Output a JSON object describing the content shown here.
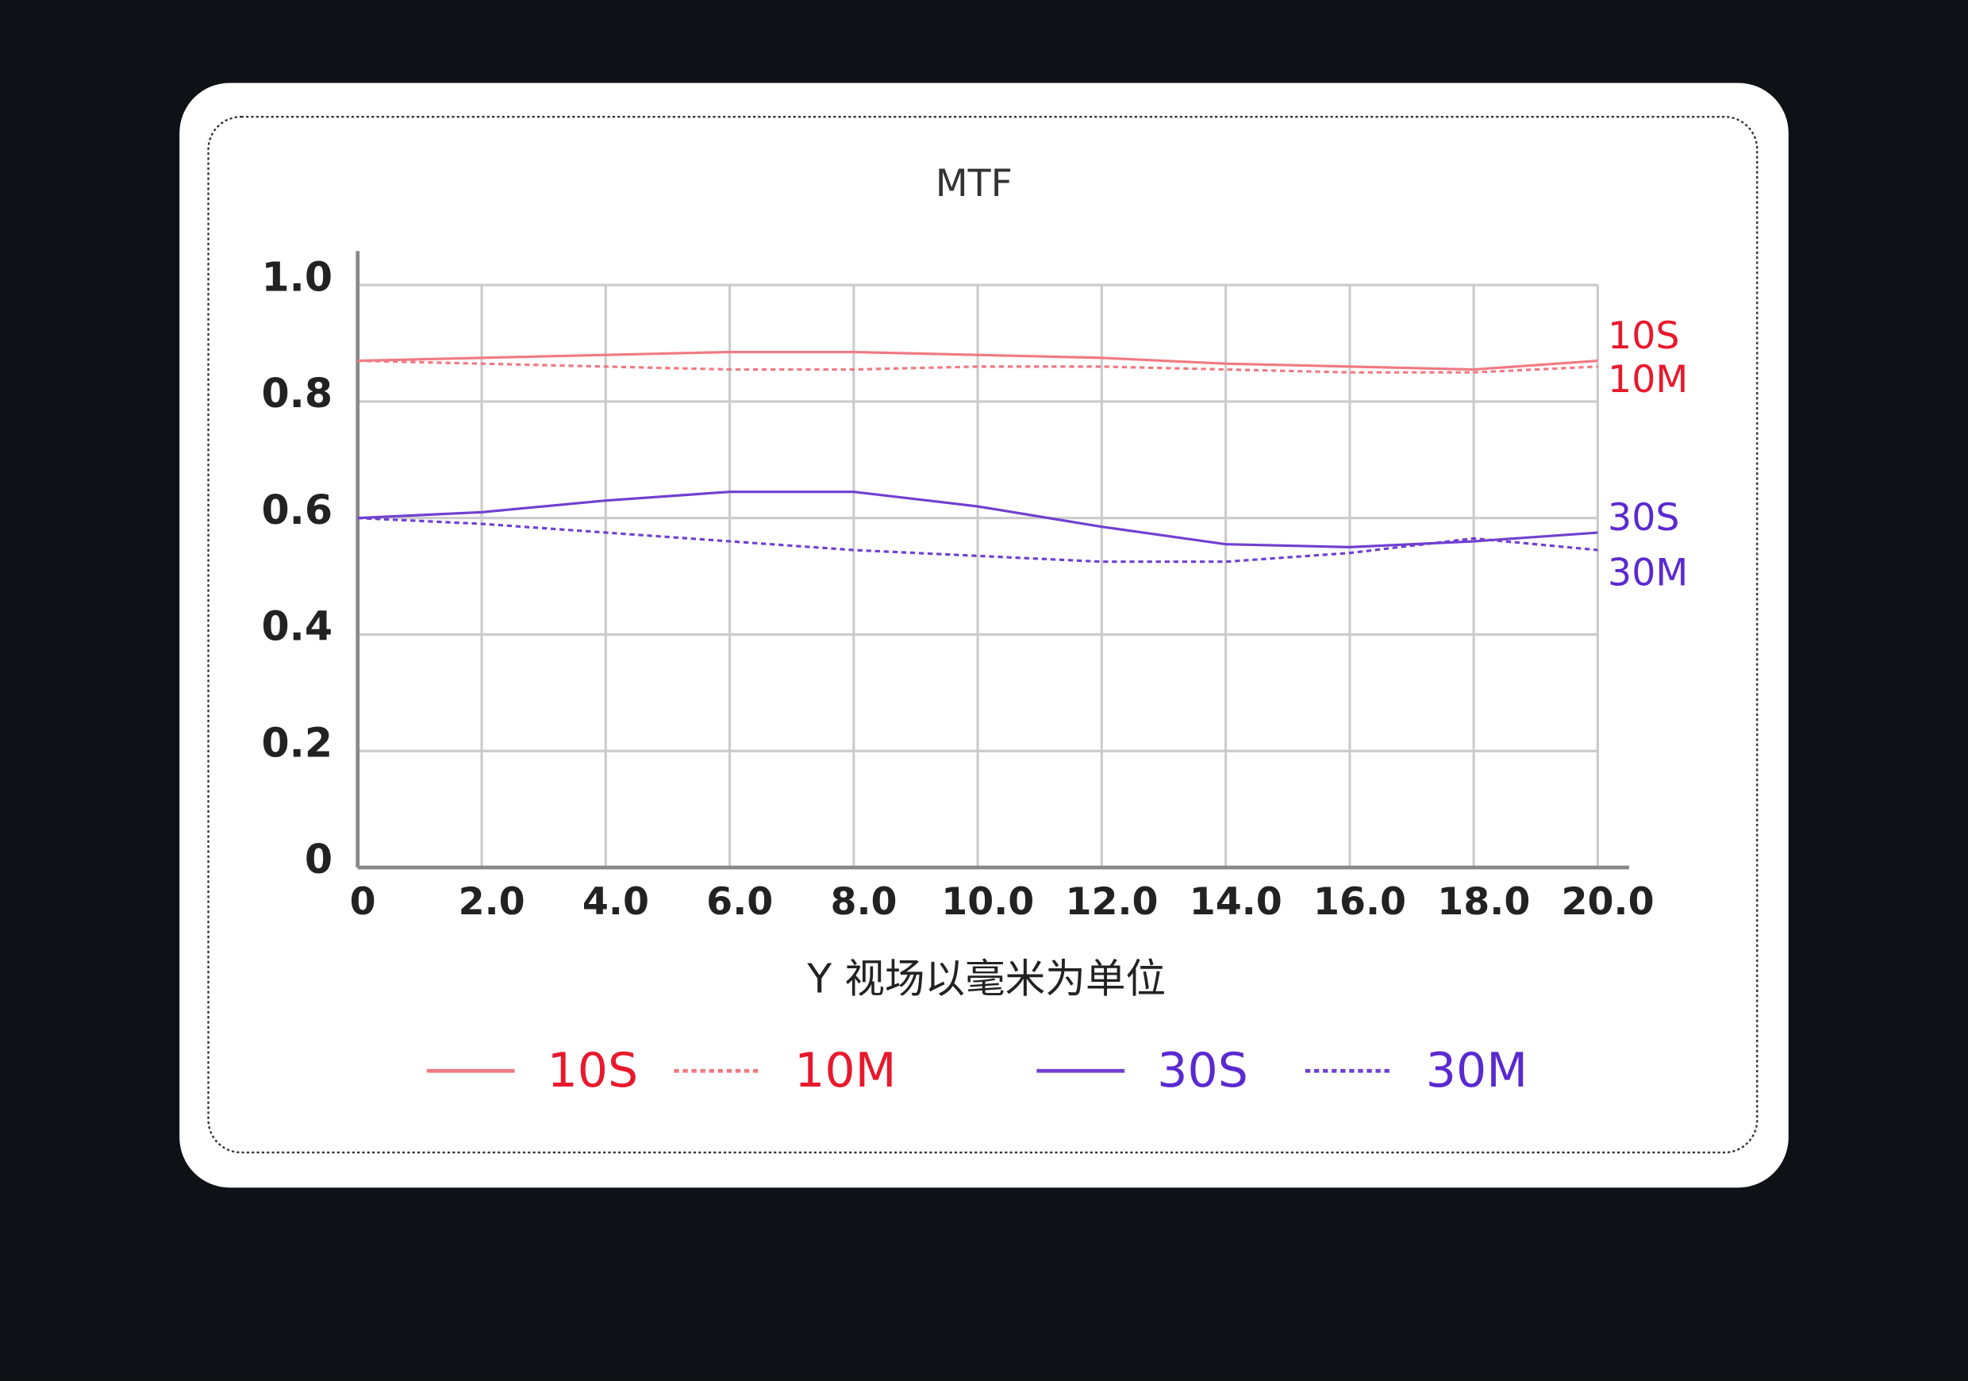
{
  "chart_data": {
    "type": "line",
    "title": "MTF",
    "x_label": "Y 视场以毫米为单位",
    "x": [
      0,
      2,
      4,
      6,
      8,
      10,
      12,
      14,
      16,
      18,
      20
    ],
    "series": [
      {
        "name": "10S",
        "color": "#f07a82",
        "label_color": "#e8192c",
        "style": "solid",
        "values": [
          0.87,
          0.875,
          0.88,
          0.885,
          0.885,
          0.88,
          0.875,
          0.865,
          0.86,
          0.855,
          0.87
        ]
      },
      {
        "name": "10M",
        "color": "#f07a82",
        "label_color": "#e8192c",
        "style": "dashed",
        "values": [
          0.87,
          0.865,
          0.86,
          0.855,
          0.855,
          0.86,
          0.86,
          0.855,
          0.85,
          0.85,
          0.86
        ]
      },
      {
        "name": "30S",
        "color": "#7040d0",
        "label_color": "#5a2ad0",
        "style": "solid",
        "values": [
          0.6,
          0.61,
          0.63,
          0.645,
          0.645,
          0.62,
          0.585,
          0.555,
          0.55,
          0.56,
          0.575
        ]
      },
      {
        "name": "30M",
        "color": "#7040d0",
        "label_color": "#5a2ad0",
        "style": "dashed",
        "values": [
          0.6,
          0.59,
          0.575,
          0.56,
          0.545,
          0.535,
          0.525,
          0.525,
          0.54,
          0.565,
          0.545
        ]
      }
    ],
    "xlim": [
      0,
      20
    ],
    "xticks": [
      0,
      {
        "value": 2,
        "label": "2.0"
      },
      {
        "value": 4,
        "label": "4.0"
      },
      {
        "value": 6,
        "label": "6.0"
      },
      {
        "value": 8,
        "label": "8.0"
      },
      {
        "value": 10,
        "label": "10.0"
      },
      {
        "value": 12,
        "label": "12.0"
      },
      {
        "value": 14,
        "label": "14.0"
      },
      {
        "value": 16,
        "label": "16.0"
      },
      {
        "value": 18,
        "label": "18.0"
      },
      {
        "value": 20,
        "label": "20.0"
      }
    ],
    "ylim": [
      0,
      1
    ],
    "yticks": [
      0,
      0.2,
      0.4,
      0.6,
      0.8,
      {
        "value": 1,
        "label": "1.0"
      }
    ],
    "grid": true
  }
}
